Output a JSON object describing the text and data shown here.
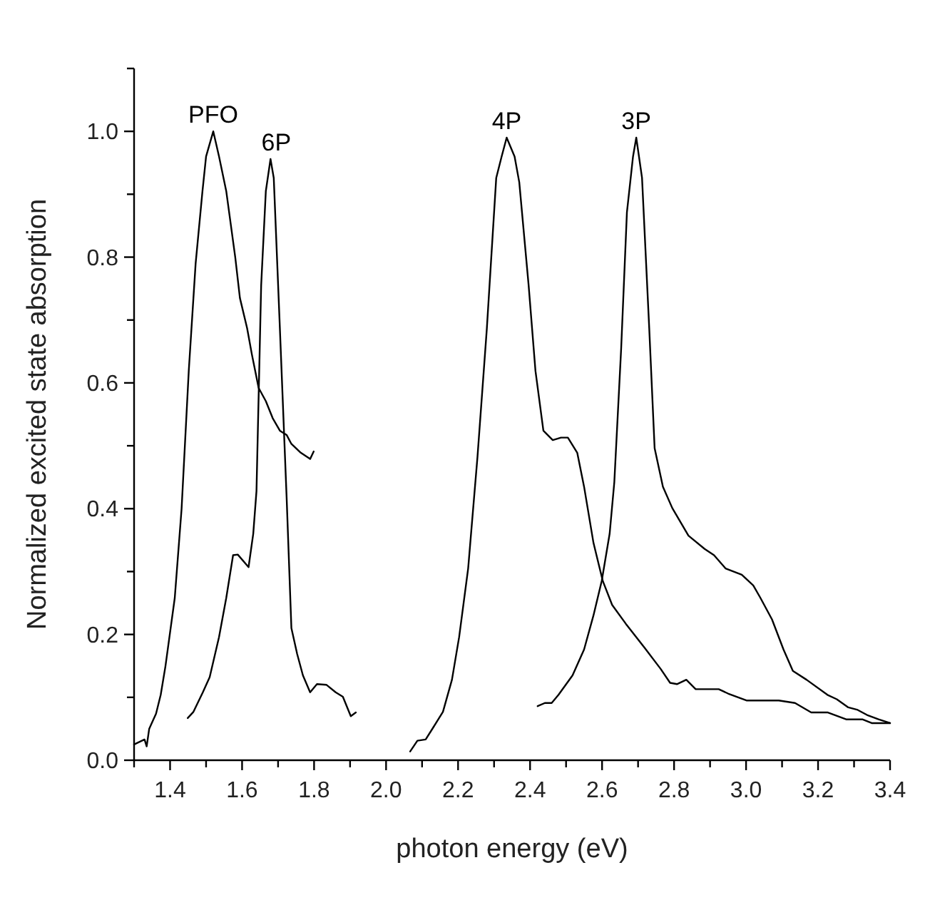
{
  "chart_data": {
    "type": "line",
    "xlabel": "photon energy (eV)",
    "ylabel": "Normalized excited state absorption",
    "xlim": [
      1.3,
      3.4
    ],
    "ylim": [
      0,
      1.1
    ],
    "xticks": [
      {
        "value": 1.3,
        "label": null
      },
      1.4,
      {
        "value": 1.5,
        "label": null
      },
      1.6,
      {
        "value": 1.7,
        "label": null
      },
      1.8,
      {
        "value": 1.9,
        "label": null
      },
      {
        "value": 2.0,
        "label": "2.0"
      },
      {
        "value": 2.1,
        "label": null
      },
      2.2,
      {
        "value": 2.3,
        "label": null
      },
      2.4,
      {
        "value": 2.5,
        "label": null
      },
      2.6,
      {
        "value": 2.7,
        "label": null
      },
      2.8,
      {
        "value": 2.9,
        "label": null
      },
      {
        "value": 3.0,
        "label": "3.0"
      },
      {
        "value": 3.1,
        "label": null
      },
      3.2,
      {
        "value": 3.3,
        "label": null
      },
      3.4
    ],
    "yticks": [
      {
        "value": 0,
        "label": "0.0"
      },
      {
        "value": 0.1,
        "label": null
      },
      0.2,
      {
        "value": 0.3,
        "label": null
      },
      0.4,
      {
        "value": 0.5,
        "label": null
      },
      0.6,
      {
        "value": 0.7,
        "label": null
      },
      0.8,
      {
        "value": 0.9,
        "label": null
      },
      {
        "value": 1.0,
        "label": "1.0"
      },
      {
        "value": 1.1,
        "label": null
      }
    ],
    "grid": false,
    "marker": "none",
    "line_style": "solid",
    "series": [
      {
        "name": "PFO",
        "color": "#000000",
        "x": [
          1.3,
          1.329,
          1.335,
          1.342,
          1.361,
          1.374,
          1.387,
          1.413,
          1.432,
          1.452,
          1.471,
          1.49,
          1.5,
          1.52,
          1.536,
          1.556,
          1.581,
          1.594,
          1.614,
          1.627,
          1.646,
          1.666,
          1.685,
          1.705,
          1.724,
          1.737,
          1.763,
          1.789,
          1.799
        ],
        "values": [
          0.025,
          0.033,
          0.022,
          0.05,
          0.074,
          0.104,
          0.149,
          0.258,
          0.4,
          0.62,
          0.79,
          0.905,
          0.96,
          1.0,
          0.96,
          0.905,
          0.8,
          0.735,
          0.687,
          0.646,
          0.592,
          0.571,
          0.544,
          0.524,
          0.517,
          0.503,
          0.489,
          0.479,
          0.491
        ]
      },
      {
        "name": "6P",
        "color": "#000000",
        "x": [
          1.449,
          1.465,
          1.491,
          1.51,
          1.536,
          1.556,
          1.575,
          1.588,
          1.618,
          1.631,
          1.64,
          1.653,
          1.666,
          1.679,
          1.688,
          1.705,
          1.724,
          1.737,
          1.753,
          1.769,
          1.789,
          1.808,
          1.834,
          1.86,
          1.88,
          1.902,
          1.916
        ],
        "values": [
          0.067,
          0.077,
          0.108,
          0.132,
          0.196,
          0.258,
          0.326,
          0.327,
          0.307,
          0.36,
          0.428,
          0.755,
          0.905,
          0.956,
          0.926,
          0.687,
          0.414,
          0.21,
          0.169,
          0.135,
          0.108,
          0.121,
          0.12,
          0.108,
          0.101,
          0.07,
          0.076
        ]
      },
      {
        "name": "4P",
        "color": "#000000",
        "x": [
          2.067,
          2.087,
          2.11,
          2.132,
          2.158,
          2.183,
          2.203,
          2.228,
          2.254,
          2.28,
          2.306,
          2.321,
          2.335,
          2.357,
          2.37,
          2.396,
          2.415,
          2.437,
          2.463,
          2.486,
          2.505,
          2.531,
          2.55,
          2.576,
          2.602,
          2.628,
          2.666,
          2.718,
          2.763,
          2.789,
          2.808,
          2.834,
          2.86,
          2.924,
          2.95,
          3.001,
          3.091,
          3.136,
          3.181,
          3.226,
          3.278,
          3.323,
          3.349,
          3.4
        ],
        "values": [
          0.014,
          0.031,
          0.033,
          0.053,
          0.077,
          0.128,
          0.196,
          0.305,
          0.483,
          0.687,
          0.926,
          0.96,
          0.99,
          0.96,
          0.919,
          0.755,
          0.619,
          0.524,
          0.509,
          0.513,
          0.513,
          0.489,
          0.435,
          0.346,
          0.285,
          0.247,
          0.217,
          0.179,
          0.145,
          0.123,
          0.121,
          0.128,
          0.113,
          0.113,
          0.106,
          0.095,
          0.095,
          0.091,
          0.076,
          0.076,
          0.065,
          0.065,
          0.059,
          0.059
        ]
      },
      {
        "name": "3P",
        "color": "#000000",
        "x": [
          2.421,
          2.441,
          2.46,
          2.479,
          2.518,
          2.55,
          2.576,
          2.599,
          2.621,
          2.634,
          2.653,
          2.669,
          2.686,
          2.695,
          2.711,
          2.731,
          2.746,
          2.769,
          2.795,
          2.84,
          2.885,
          2.911,
          2.943,
          2.988,
          3.02,
          3.04,
          3.072,
          3.104,
          3.13,
          3.168,
          3.226,
          3.252,
          3.284,
          3.31,
          3.336,
          3.368,
          3.4
        ],
        "values": [
          0.086,
          0.091,
          0.091,
          0.104,
          0.135,
          0.176,
          0.23,
          0.285,
          0.36,
          0.442,
          0.654,
          0.871,
          0.96,
          0.99,
          0.926,
          0.687,
          0.496,
          0.435,
          0.401,
          0.357,
          0.336,
          0.326,
          0.305,
          0.295,
          0.278,
          0.258,
          0.224,
          0.176,
          0.142,
          0.128,
          0.104,
          0.097,
          0.084,
          0.08,
          0.072,
          0.065,
          0.059
        ]
      }
    ]
  }
}
